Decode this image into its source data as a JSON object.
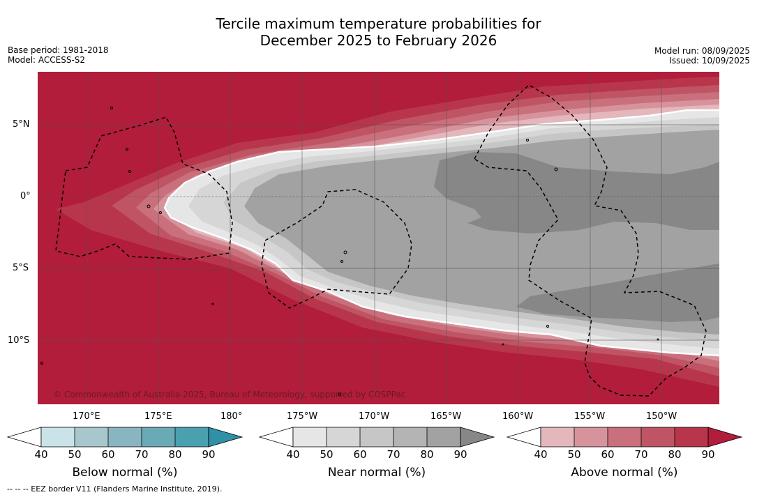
{
  "title_line1": "Tercile maximum temperature probabilities for",
  "title_line2": "December 2025 to February 2026",
  "meta_left": {
    "base_period": "Base period: 1981-2018",
    "model": "Model: ACCESS-S2"
  },
  "meta_right": {
    "model_run": "Model run: 08/09/2025",
    "issued": "Issued: 10/09/2025"
  },
  "map": {
    "lat_labels": [
      "5°N",
      "0°",
      "5°S",
      "10°S"
    ],
    "lon_labels": [
      "170°E",
      "175°E",
      "180°",
      "175°W",
      "170°W",
      "165°W",
      "160°W",
      "155°W",
      "150°W"
    ],
    "copyright": "© Commonwealth of Australia 2025, Bureau of Meteorology, supported by COSPPac",
    "colors": {
      "above": [
        "#e3b7bc",
        "#d7939c",
        "#c9707c",
        "#bf5564",
        "#b8364b",
        "#b11d3b"
      ],
      "near": [
        "#e6e6e6",
        "#d6d6d6",
        "#c6c6c6",
        "#b4b4b4",
        "#a2a2a2",
        "#878787"
      ],
      "below": [
        "#c9e3e8",
        "#a7c7cd",
        "#89b5c0",
        "#6aaab7",
        "#4ba0b0",
        "#2f90a8"
      ]
    }
  },
  "colorbars": [
    {
      "title": "Below normal (%)",
      "ticks": [
        "40",
        "50",
        "60",
        "70",
        "80",
        "90"
      ]
    },
    {
      "title": "Near normal (%)",
      "ticks": [
        "40",
        "50",
        "60",
        "70",
        "80",
        "90"
      ]
    },
    {
      "title": "Above normal (%)",
      "ticks": [
        "40",
        "50",
        "60",
        "70",
        "80",
        "90"
      ]
    }
  ],
  "footnote": "--  --  -- EEZ border V11 (Flanders Marine Institute, 2019)."
}
